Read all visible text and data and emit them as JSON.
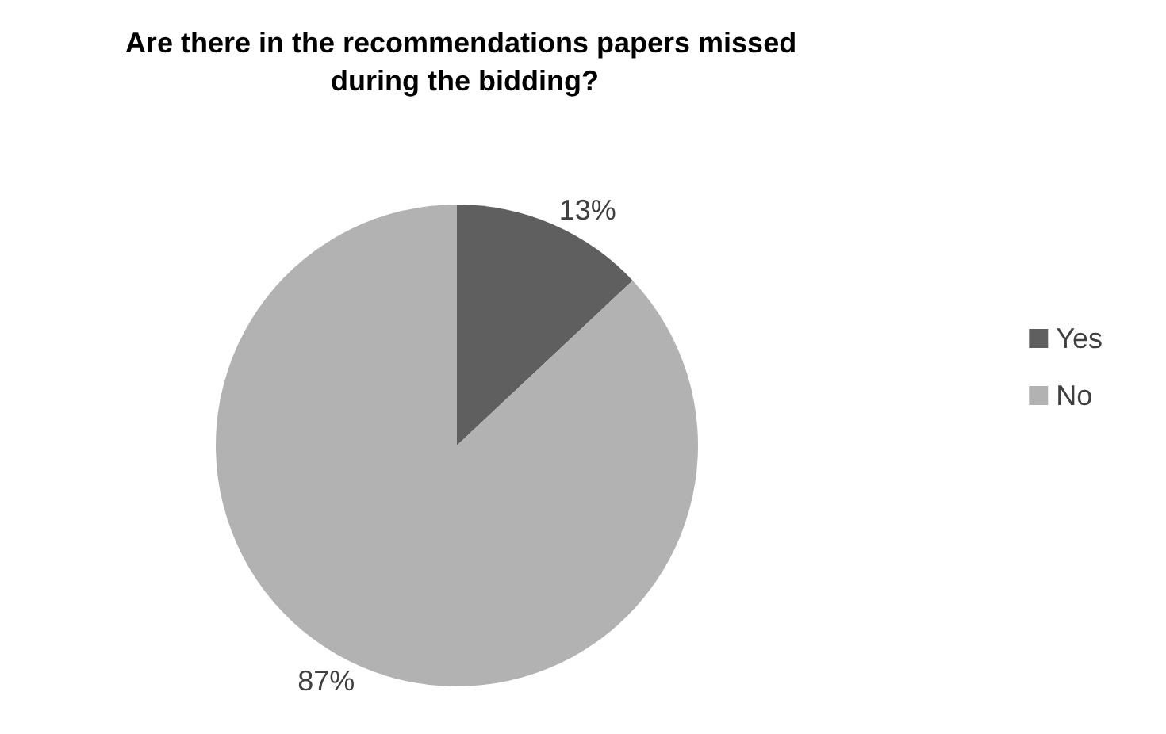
{
  "chart_data": {
    "type": "pie",
    "title": "Are there in the recommendations papers missed during the bidding?",
    "categories": [
      "Yes",
      "No"
    ],
    "values": [
      13,
      87
    ],
    "colors": [
      "#5f5f5f",
      "#b2b2b2"
    ],
    "value_labels": [
      "13%",
      "87%"
    ],
    "legend": "right"
  }
}
